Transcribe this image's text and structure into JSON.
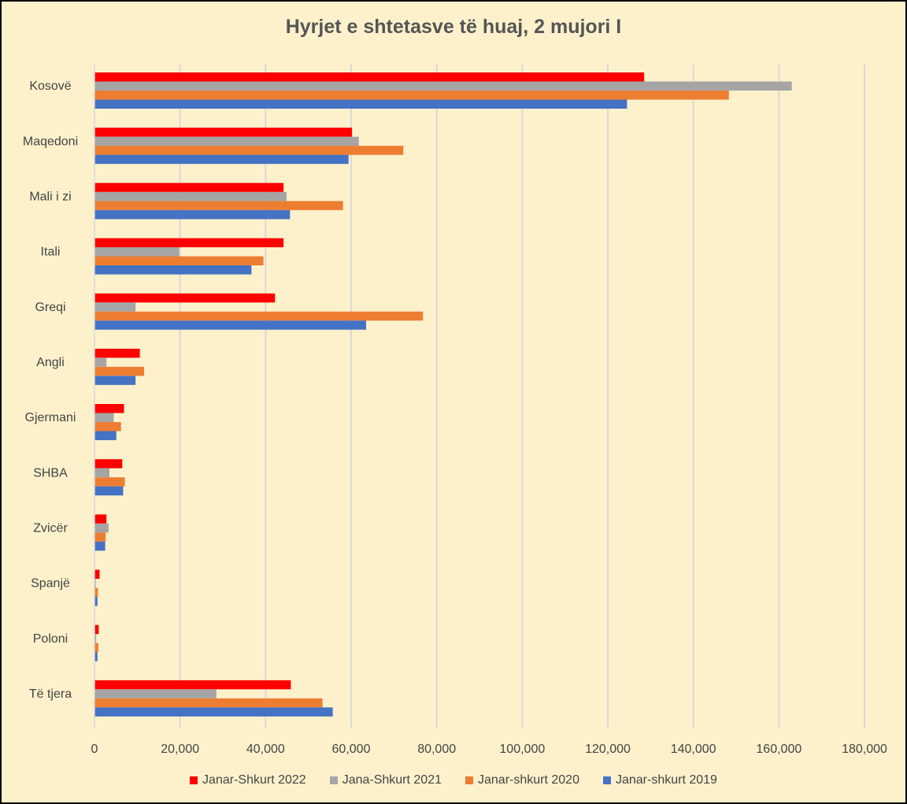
{
  "chart_data": {
    "type": "bar",
    "orientation": "horizontal",
    "title": "Hyrjet e shtetasve të huaj, 2 mujori I",
    "xlabel": "",
    "ylabel": "",
    "xlim": [
      0,
      180000
    ],
    "x_ticks": [
      "0",
      "20,000",
      "40,000",
      "60,000",
      "80,000",
      "100,000",
      "120,000",
      "140,000",
      "160,000",
      "180,000"
    ],
    "grid": true,
    "legend_position": "bottom",
    "categories": [
      "Kosovë",
      "Maqedoni",
      "Mali i zi",
      "Itali",
      "Greqi",
      "Angli",
      "Gjermani",
      "SHBA",
      "Zvicër",
      "Spanjë",
      "Poloni",
      "Të tjera"
    ],
    "series": [
      {
        "name": "Janar-Shkurt 2022",
        "color": "#ff0000",
        "values": [
          128500,
          60200,
          44200,
          44200,
          42200,
          10600,
          6900,
          6500,
          2800,
          1200,
          1000,
          45900
        ]
      },
      {
        "name": "Jana-Shkurt 2021",
        "color": "#a5a5a5",
        "values": [
          163000,
          61800,
          44900,
          19800,
          9600,
          2800,
          4500,
          3500,
          3300,
          300,
          400,
          28500
        ]
      },
      {
        "name": "Janar-shkurt 2020",
        "color": "#ed7d31",
        "values": [
          148300,
          72200,
          58100,
          39500,
          76800,
          11600,
          6200,
          7100,
          2600,
          800,
          900,
          53300
        ]
      },
      {
        "name": "Janar-shkurt 2019",
        "color": "#4472c4",
        "values": [
          124500,
          59400,
          45700,
          36700,
          63500,
          9600,
          5100,
          6700,
          2500,
          700,
          700,
          55700
        ]
      }
    ]
  }
}
